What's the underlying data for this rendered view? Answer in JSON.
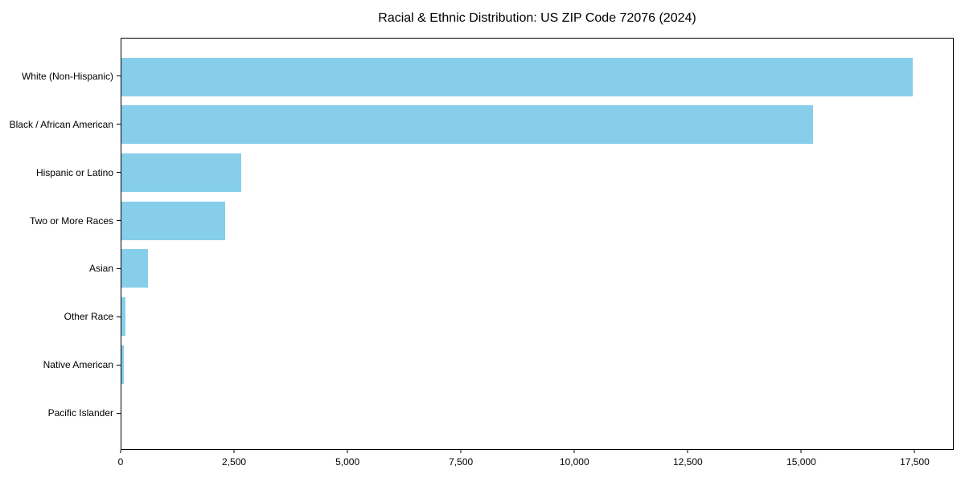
{
  "chart_data": {
    "type": "bar",
    "orientation": "horizontal",
    "title": "Racial & Ethnic Distribution: US ZIP Code 72076 (2024)",
    "categories": [
      "White (Non-Hispanic)",
      "Black / African American",
      "Hispanic or Latino",
      "Two or More Races",
      "Asian",
      "Other Race",
      "Native American",
      "Pacific Islander"
    ],
    "values": [
      17480,
      15270,
      2640,
      2290,
      590,
      90,
      50,
      0
    ],
    "xlabel": "",
    "ylabel": "",
    "xlim": [
      0,
      18360
    ],
    "xticks": [
      0,
      2500,
      5000,
      7500,
      10000,
      12500,
      15000,
      17500
    ],
    "xtick_labels": [
      "0",
      "2,500",
      "5,000",
      "7,500",
      "10,000",
      "12,500",
      "15,000",
      "17,500"
    ],
    "bar_color": "#87CEEB",
    "spine_color": "#000000",
    "text_color": "#000000",
    "background_color": "#ffffff",
    "grid": false,
    "legend": null
  }
}
